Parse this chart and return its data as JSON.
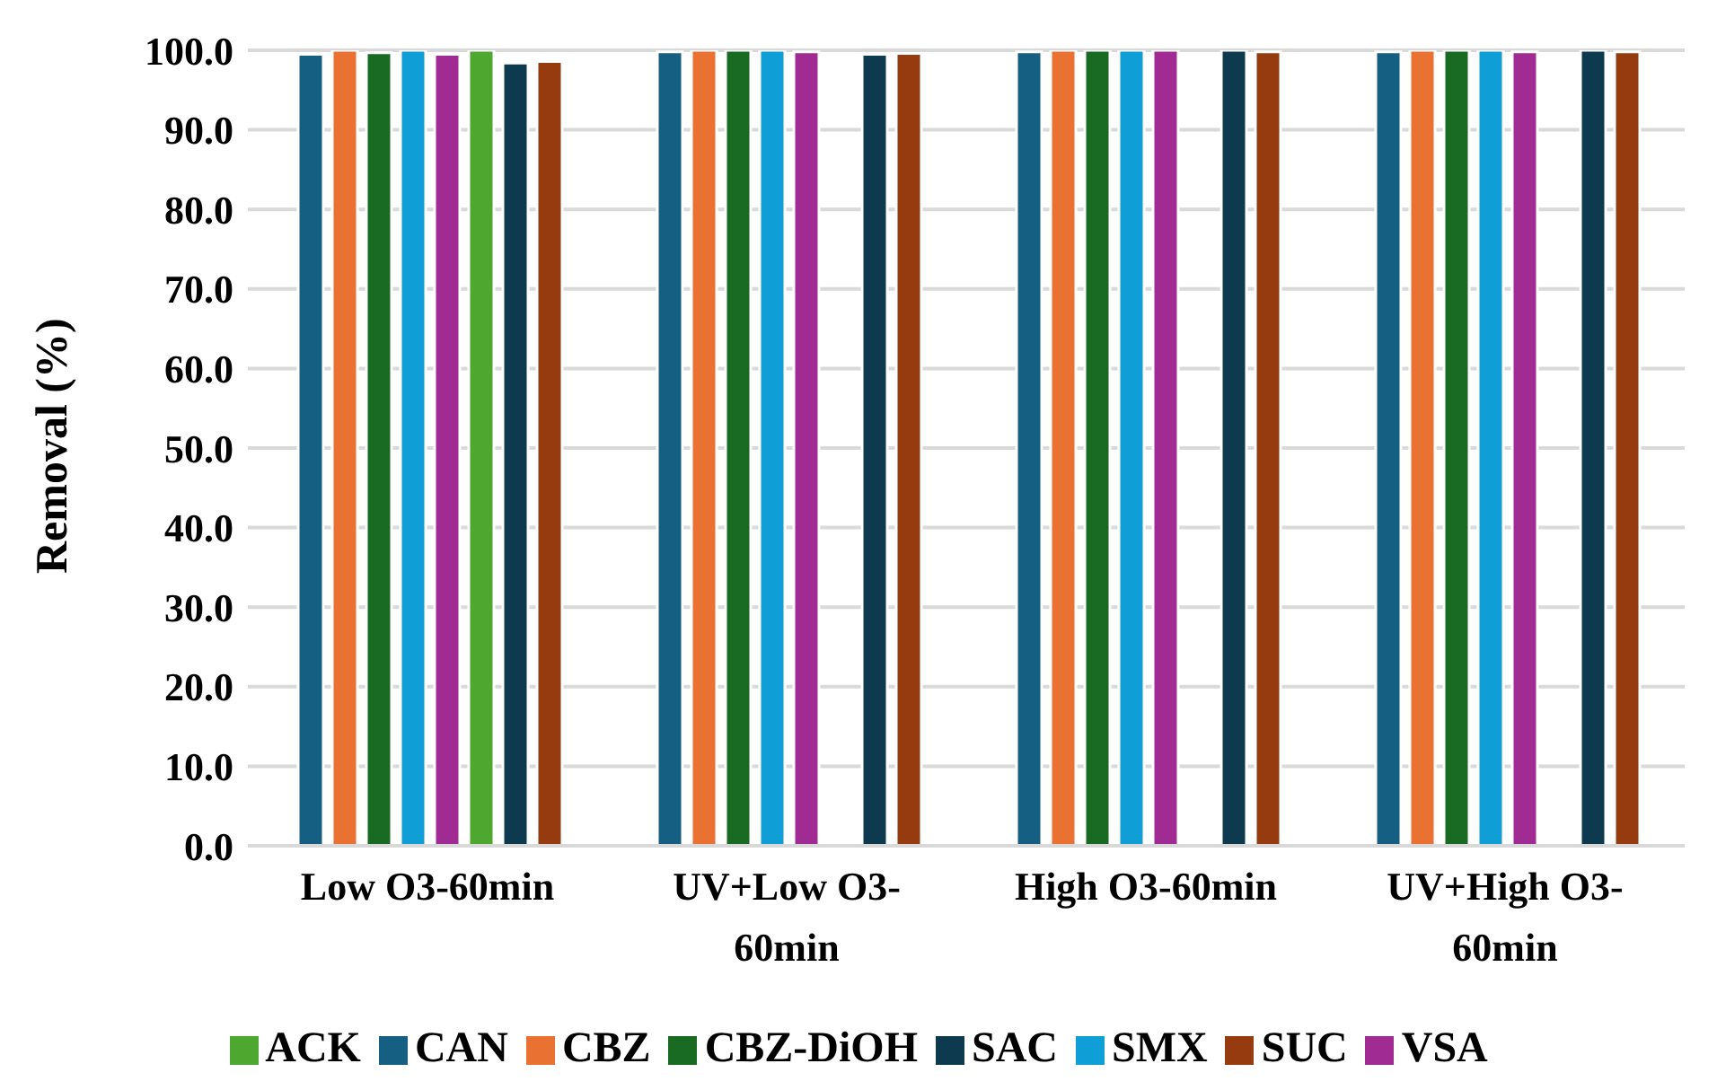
{
  "chart_data": {
    "type": "bar",
    "ylabel": "Removal (%)",
    "categories": [
      "Low O3-60min",
      "UV+Low O3-60min",
      "High O3-60min",
      "UV+High O3-60min"
    ],
    "series": [
      {
        "name": "CAN",
        "color": "#156082",
        "values": [
          99.5,
          99.8,
          99.8,
          99.8
        ]
      },
      {
        "name": "CBZ",
        "color": "#e97132",
        "values": [
          100.0,
          100.0,
          100.0,
          100.0
        ]
      },
      {
        "name": "CBZ-DiOH",
        "color": "#196b24",
        "values": [
          99.7,
          100.0,
          100.0,
          100.0
        ]
      },
      {
        "name": "SMX",
        "color": "#0f9ed5",
        "values": [
          100.0,
          100.0,
          100.0,
          100.0
        ]
      },
      {
        "name": "VSA",
        "color": "#a02b93",
        "values": [
          99.5,
          99.8,
          100.0,
          99.8
        ]
      },
      {
        "name": "ACK",
        "color": "#4ea72e",
        "values": [
          100.0,
          null,
          null,
          null
        ]
      },
      {
        "name": "SAC",
        "color": "#0e3a50",
        "values": [
          98.4,
          99.5,
          100.0,
          100.0
        ]
      },
      {
        "name": "SUC",
        "color": "#953b0f",
        "values": [
          98.6,
          99.6,
          99.8,
          99.8
        ]
      }
    ],
    "ylim": [
      0,
      100
    ],
    "yticks": [
      {
        "value": 0,
        "label": "0.0"
      },
      {
        "value": 10,
        "label": "10.0"
      },
      {
        "value": 20,
        "label": "20.0"
      },
      {
        "value": 30,
        "label": "30.0"
      },
      {
        "value": 40,
        "label": "40.0"
      },
      {
        "value": 50,
        "label": "50.0"
      },
      {
        "value": 60,
        "label": "60.0"
      },
      {
        "value": 70,
        "label": "70.0"
      },
      {
        "value": 80,
        "label": "80.0"
      },
      {
        "value": 90,
        "label": "90.0"
      },
      {
        "value": 100,
        "label": "100.0"
      }
    ],
    "grid": "y",
    "legend": "bottom"
  }
}
